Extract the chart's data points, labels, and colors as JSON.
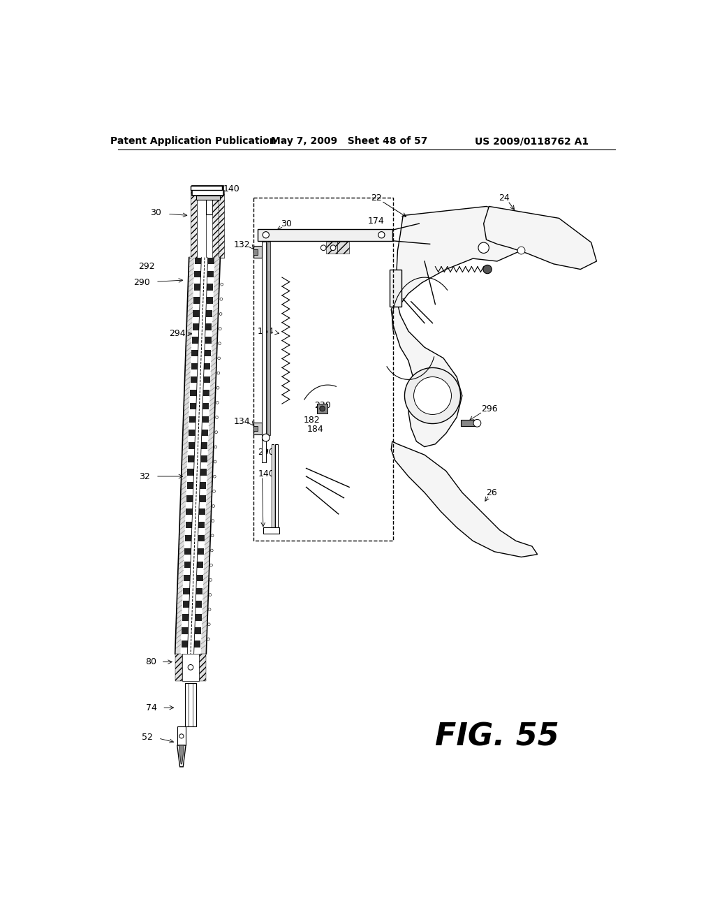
{
  "bg_color": "#ffffff",
  "header_left": "Patent Application Publication",
  "header_mid": "May 7, 2009   Sheet 48 of 57",
  "header_right": "US 2009/0118762 A1",
  "fig_label": "FIG. 55",
  "header_fontsize": 10,
  "fig_label_fontsize": 32,
  "label_fontsize": 9
}
